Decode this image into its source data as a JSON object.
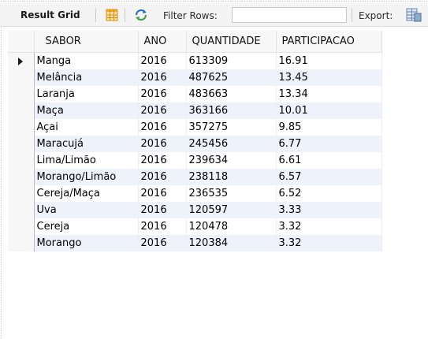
{
  "toolbar": {
    "result_grid_label": "Result Grid",
    "filter_rows_label": "Filter Rows:",
    "filter_value": "",
    "export_label": "Export:"
  },
  "grid": {
    "columns": [
      "SABOR",
      "ANO",
      "QUANTIDADE",
      "PARTICIPACAO"
    ],
    "selected_row": 0,
    "rows": [
      {
        "sabor": "Manga",
        "ano": "2016",
        "quantidade": "613309",
        "participacao": "16.91"
      },
      {
        "sabor": "Melância",
        "ano": "2016",
        "quantidade": "487625",
        "participacao": "13.45"
      },
      {
        "sabor": "Laranja",
        "ano": "2016",
        "quantidade": "483663",
        "participacao": "13.34"
      },
      {
        "sabor": "Maça",
        "ano": "2016",
        "quantidade": "363166",
        "participacao": "10.01"
      },
      {
        "sabor": "Açai",
        "ano": "2016",
        "quantidade": "357275",
        "participacao": "9.85"
      },
      {
        "sabor": "Maracujá",
        "ano": "2016",
        "quantidade": "245456",
        "participacao": "6.77"
      },
      {
        "sabor": "Lima/Limão",
        "ano": "2016",
        "quantidade": "239634",
        "participacao": "6.61"
      },
      {
        "sabor": "Morango/Limão",
        "ano": "2016",
        "quantidade": "238118",
        "participacao": "6.57"
      },
      {
        "sabor": "Cereja/Maça",
        "ano": "2016",
        "quantidade": "236535",
        "participacao": "6.52"
      },
      {
        "sabor": "Uva",
        "ano": "2016",
        "quantidade": "120597",
        "participacao": "3.33"
      },
      {
        "sabor": "Cereja",
        "ano": "2016",
        "quantidade": "120478",
        "participacao": "3.32"
      },
      {
        "sabor": "Morango",
        "ano": "2016",
        "quantidade": "120384",
        "participacao": "3.32"
      }
    ]
  },
  "icons": {
    "grid": "grid-icon",
    "refresh": "refresh-icon",
    "export": "export-icon",
    "row_marker": "row-marker-arrow-icon"
  },
  "colors": {
    "alt_row": "#edf2fb",
    "toolbar_bg": "#f4f4f4",
    "header_bg": "#f7f7f7",
    "grid_icon_orange": "#f2a620",
    "refresh_blue": "#2b6fc2",
    "refresh_green": "#43a047"
  }
}
